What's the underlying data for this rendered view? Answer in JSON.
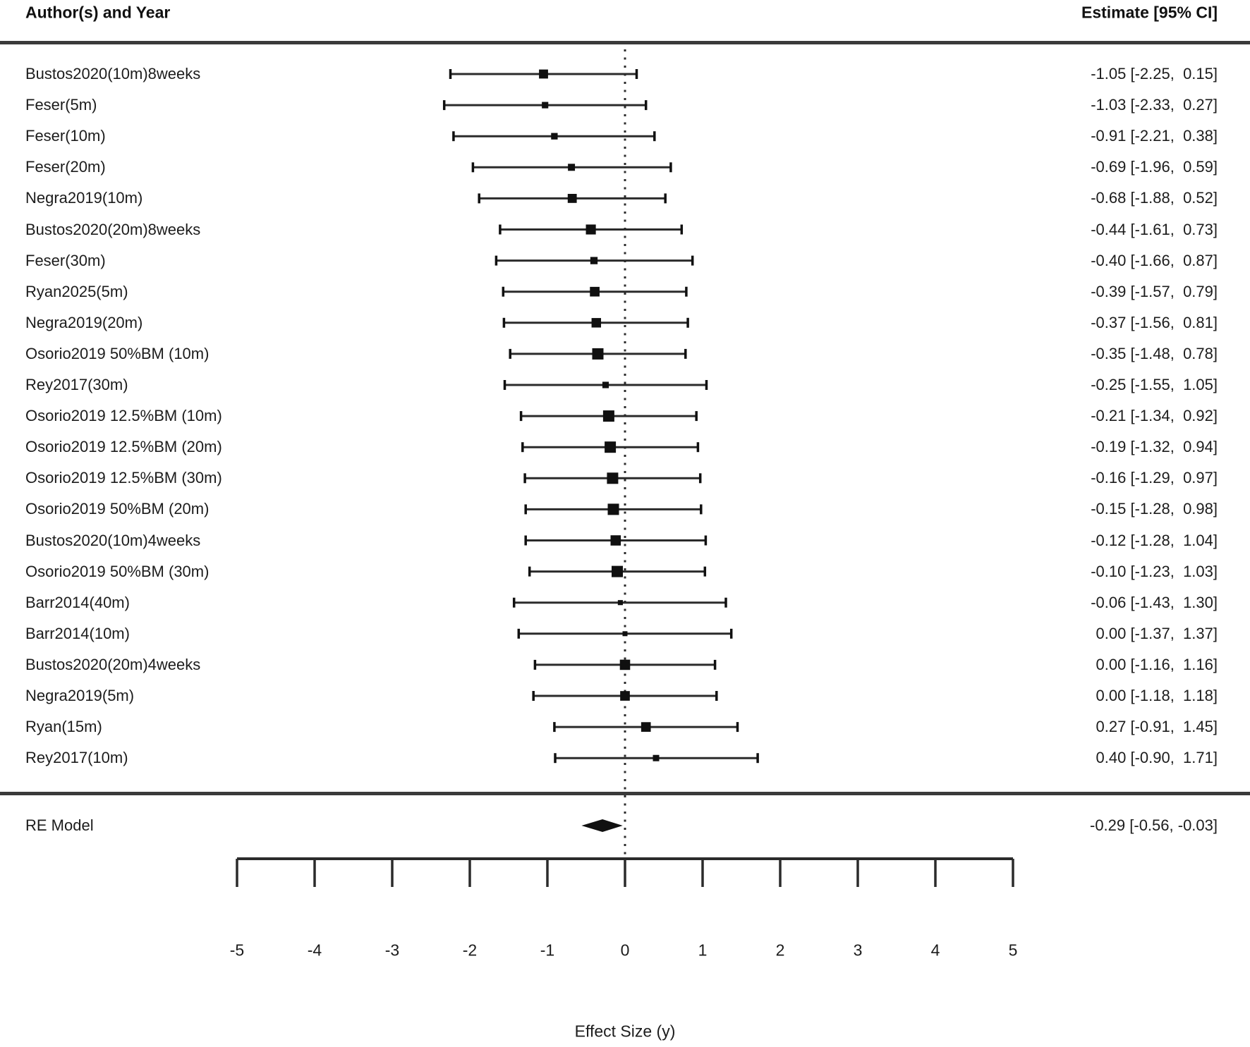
{
  "header": {
    "author_label": "Author(s) and Year",
    "estimate_label": "Estimate [95% CI]"
  },
  "re_model": {
    "label": "RE Model",
    "estimate": -0.29,
    "lb": -0.56,
    "ub": -0.03,
    "display": "-0.29 [-0.56, -0.03]"
  },
  "chart_data": {
    "type": "forest",
    "title": "",
    "xlabel": "Effect Size (y)",
    "xlim": [
      -5,
      5
    ],
    "x_ticks": [
      "-5",
      "-4",
      "-3",
      "-2",
      "-1",
      "0",
      "1",
      "2",
      "3",
      "4",
      "5"
    ],
    "reference_line": 0,
    "grid": false,
    "studies": [
      {
        "label": "Bustos2020(10m)8weeks",
        "estimate": -1.05,
        "lb": -2.25,
        "ub": 0.15,
        "display": "-1.05 [-2.25,  0.15]"
      },
      {
        "label": "Feser(5m)",
        "estimate": -1.03,
        "lb": -2.33,
        "ub": 0.27,
        "display": "-1.03 [-2.33,  0.27]"
      },
      {
        "label": "Feser(10m)",
        "estimate": -0.91,
        "lb": -2.21,
        "ub": 0.38,
        "display": "-0.91 [-2.21,  0.38]"
      },
      {
        "label": "Feser(20m)",
        "estimate": -0.69,
        "lb": -1.96,
        "ub": 0.59,
        "display": "-0.69 [-1.96,  0.59]"
      },
      {
        "label": "Negra2019(10m)",
        "estimate": -0.68,
        "lb": -1.88,
        "ub": 0.52,
        "display": "-0.68 [-1.88,  0.52]"
      },
      {
        "label": "Bustos2020(20m)8weeks",
        "estimate": -0.44,
        "lb": -1.61,
        "ub": 0.73,
        "display": "-0.44 [-1.61,  0.73]"
      },
      {
        "label": "Feser(30m)",
        "estimate": -0.4,
        "lb": -1.66,
        "ub": 0.87,
        "display": "-0.40 [-1.66,  0.87]"
      },
      {
        "label": "Ryan2025(5m)",
        "estimate": -0.39,
        "lb": -1.57,
        "ub": 0.79,
        "display": "-0.39 [-1.57,  0.79]"
      },
      {
        "label": "Negra2019(20m)",
        "estimate": -0.37,
        "lb": -1.56,
        "ub": 0.81,
        "display": "-0.37 [-1.56,  0.81]"
      },
      {
        "label": "Osorio2019 50%BM (10m)",
        "estimate": -0.35,
        "lb": -1.48,
        "ub": 0.78,
        "display": "-0.35 [-1.48,  0.78]"
      },
      {
        "label": "Rey2017(30m)",
        "estimate": -0.25,
        "lb": -1.55,
        "ub": 1.05,
        "display": "-0.25 [-1.55,  1.05]"
      },
      {
        "label": "Osorio2019 12.5%BM (10m)",
        "estimate": -0.21,
        "lb": -1.34,
        "ub": 0.92,
        "display": "-0.21 [-1.34,  0.92]"
      },
      {
        "label": "Osorio2019 12.5%BM (20m)",
        "estimate": -0.19,
        "lb": -1.32,
        "ub": 0.94,
        "display": "-0.19 [-1.32,  0.94]"
      },
      {
        "label": "Osorio2019 12.5%BM (30m)",
        "estimate": -0.16,
        "lb": -1.29,
        "ub": 0.97,
        "display": "-0.16 [-1.29,  0.97]"
      },
      {
        "label": "Osorio2019 50%BM (20m)",
        "estimate": -0.15,
        "lb": -1.28,
        "ub": 0.98,
        "display": "-0.15 [-1.28,  0.98]"
      },
      {
        "label": "Bustos2020(10m)4weeks",
        "estimate": -0.12,
        "lb": -1.28,
        "ub": 1.04,
        "display": "-0.12 [-1.28,  1.04]"
      },
      {
        "label": "Osorio2019 50%BM (30m)",
        "estimate": -0.1,
        "lb": -1.23,
        "ub": 1.03,
        "display": "-0.10 [-1.23,  1.03]"
      },
      {
        "label": "Barr2014(40m)",
        "estimate": -0.06,
        "lb": -1.43,
        "ub": 1.3,
        "display": "-0.06 [-1.43,  1.30]"
      },
      {
        "label": "Barr2014(10m)",
        "estimate": 0.0,
        "lb": -1.37,
        "ub": 1.37,
        "display": "0.00 [-1.37,  1.37]"
      },
      {
        "label": "Bustos2020(20m)4weeks",
        "estimate": 0.0,
        "lb": -1.16,
        "ub": 1.16,
        "display": "0.00 [-1.16,  1.16]"
      },
      {
        "label": "Negra2019(5m)",
        "estimate": 0.0,
        "lb": -1.18,
        "ub": 1.18,
        "display": "0.00 [-1.18,  1.18]"
      },
      {
        "label": "Ryan(15m)",
        "estimate": 0.27,
        "lb": -0.91,
        "ub": 1.45,
        "display": "0.27 [-0.91,  1.45]"
      },
      {
        "label": "Rey2017(10m)",
        "estimate": 0.4,
        "lb": -0.9,
        "ub": 1.71,
        "display": "0.40 [-0.90,  1.71]"
      }
    ],
    "summary": {
      "label": "RE Model",
      "estimate": -0.29,
      "lb": -0.56,
      "ub": -0.03,
      "display": "-0.29 [-0.56, -0.03]"
    },
    "colors": {
      "ink": "#1c1c1c",
      "line": "#2b2b2b",
      "marker": "#101010",
      "rule": "#3a3a3a"
    }
  }
}
